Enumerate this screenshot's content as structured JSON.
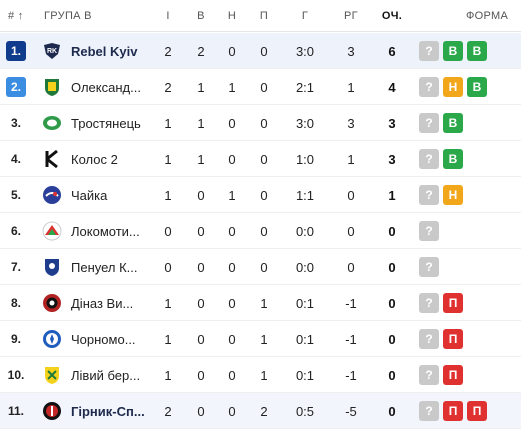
{
  "header": {
    "rank": "# ↑",
    "group": "ГРУПА В",
    "played": "І",
    "wins": "В",
    "draws": "Н",
    "losses": "П",
    "goals": "Г",
    "diff": "РГ",
    "points": "ОЧ.",
    "form": "ФОРМА"
  },
  "colors": {
    "rank_top": "#0f3c8c",
    "rank_second": "#3a8de0",
    "win": "#2aa84a",
    "draw": "#f2a71b",
    "loss": "#e03131",
    "unknown": "#c9c9c9"
  },
  "rows": [
    {
      "rank": "1.",
      "team": "Rebel Kyiv",
      "played": "2",
      "wins": "2",
      "draws": "0",
      "losses": "0",
      "goals": "3:0",
      "diff": "3",
      "points": "6",
      "form": [
        "?",
        "В",
        "В"
      ]
    },
    {
      "rank": "2.",
      "team": "Олександ...",
      "played": "2",
      "wins": "1",
      "draws": "1",
      "losses": "0",
      "goals": "2:1",
      "diff": "1",
      "points": "4",
      "form": [
        "?",
        "Н",
        "В"
      ]
    },
    {
      "rank": "3.",
      "team": "Тростянець",
      "played": "1",
      "wins": "1",
      "draws": "0",
      "losses": "0",
      "goals": "3:0",
      "diff": "3",
      "points": "3",
      "form": [
        "?",
        "В"
      ]
    },
    {
      "rank": "4.",
      "team": "Колос 2",
      "played": "1",
      "wins": "1",
      "draws": "0",
      "losses": "0",
      "goals": "1:0",
      "diff": "1",
      "points": "3",
      "form": [
        "?",
        "В"
      ]
    },
    {
      "rank": "5.",
      "team": "Чайка",
      "played": "1",
      "wins": "0",
      "draws": "1",
      "losses": "0",
      "goals": "1:1",
      "diff": "0",
      "points": "1",
      "form": [
        "?",
        "Н"
      ]
    },
    {
      "rank": "6.",
      "team": "Локомоти...",
      "played": "0",
      "wins": "0",
      "draws": "0",
      "losses": "0",
      "goals": "0:0",
      "diff": "0",
      "points": "0",
      "form": [
        "?"
      ]
    },
    {
      "rank": "7.",
      "team": "Пенуел К...",
      "played": "0",
      "wins": "0",
      "draws": "0",
      "losses": "0",
      "goals": "0:0",
      "diff": "0",
      "points": "0",
      "form": [
        "?"
      ]
    },
    {
      "rank": "8.",
      "team": "Діназ Ви...",
      "played": "1",
      "wins": "0",
      "draws": "0",
      "losses": "1",
      "goals": "0:1",
      "diff": "-1",
      "points": "0",
      "form": [
        "?",
        "П"
      ]
    },
    {
      "rank": "9.",
      "team": "Чорномо...",
      "played": "1",
      "wins": "0",
      "draws": "0",
      "losses": "1",
      "goals": "0:1",
      "diff": "-1",
      "points": "0",
      "form": [
        "?",
        "П"
      ]
    },
    {
      "rank": "10.",
      "team": "Лівий бер...",
      "played": "1",
      "wins": "0",
      "draws": "0",
      "losses": "1",
      "goals": "0:1",
      "diff": "-1",
      "points": "0",
      "form": [
        "?",
        "П"
      ]
    },
    {
      "rank": "11.",
      "team": "Гірник-Сп...",
      "played": "2",
      "wins": "0",
      "draws": "0",
      "losses": "2",
      "goals": "0:5",
      "diff": "-5",
      "points": "0",
      "form": [
        "?",
        "П",
        "П"
      ]
    }
  ]
}
